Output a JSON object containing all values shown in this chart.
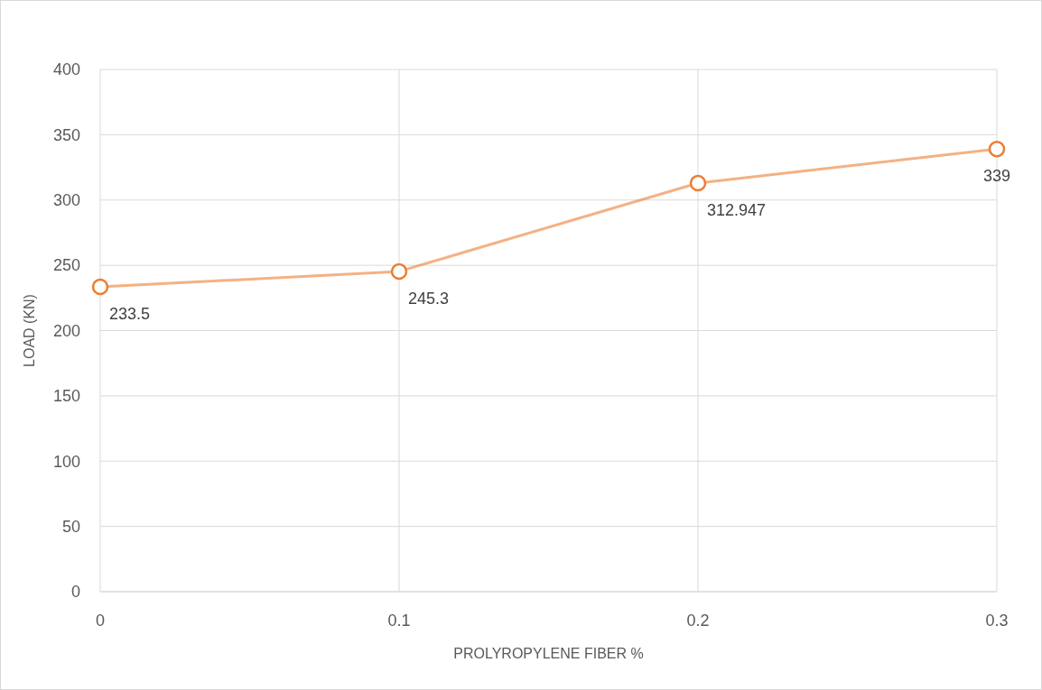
{
  "chart_data": {
    "type": "line",
    "xlabel": "PROLYROPYLENE FIBER %",
    "ylabel": "LOAD (KN)",
    "x": [
      0,
      0.1,
      0.2,
      0.3
    ],
    "series": [
      {
        "color": "#ed7d31",
        "values": [
          233.5,
          245.3,
          312.947,
          339
        ]
      }
    ],
    "xlim": [
      0,
      0.3
    ],
    "xticks": [
      0,
      0.1,
      0.2,
      0.3
    ],
    "ylim": [
      0,
      400
    ],
    "yticks": [
      0,
      50,
      100,
      150,
      200,
      250,
      300,
      350,
      400
    ],
    "grid": true,
    "marker": "circle",
    "line_style": "solid",
    "data_labels": true
  }
}
